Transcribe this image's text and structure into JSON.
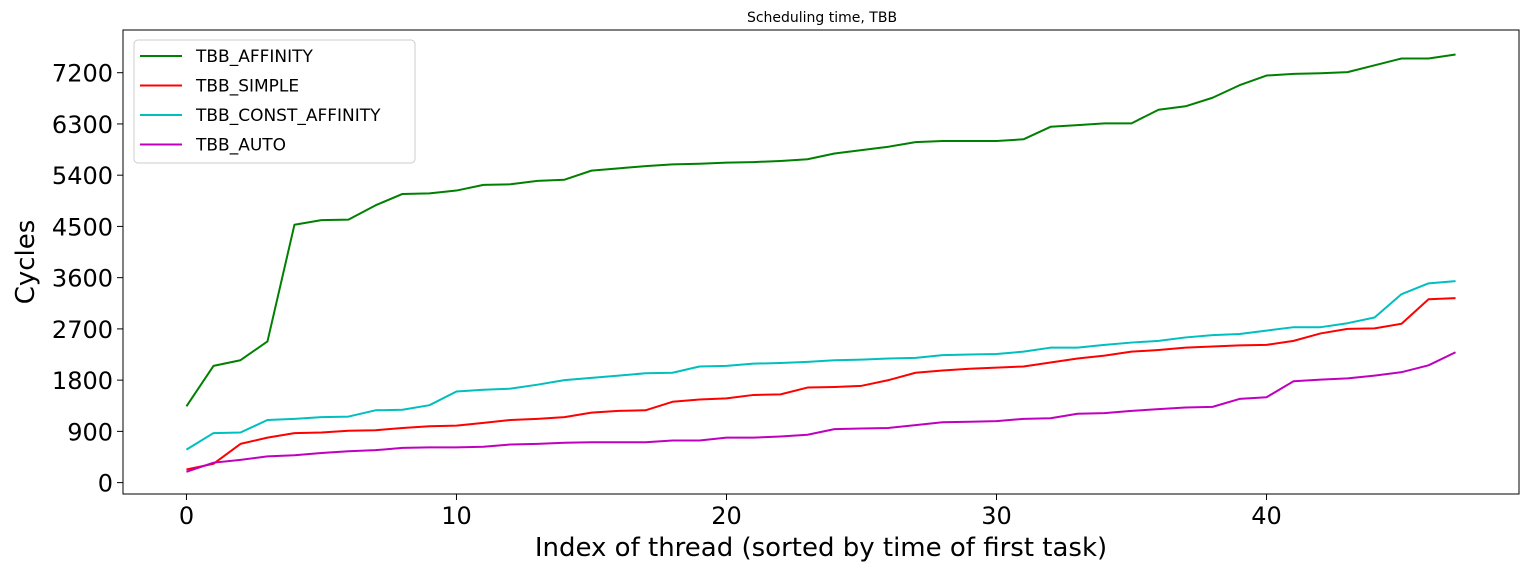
{
  "chart_data": {
    "type": "line",
    "title": "Scheduling time, TBB",
    "xlabel": "Index of thread (sorted by time of first task)",
    "ylabel": "Cycles",
    "xlim": [
      -2.35,
      49.35
    ],
    "ylim": [
      -200,
      7950
    ],
    "xticks": [
      0,
      10,
      20,
      30,
      40
    ],
    "yticks": [
      0,
      900,
      1800,
      2700,
      3600,
      4500,
      5400,
      6300,
      7200
    ],
    "grid": false,
    "legend_position": "top-left",
    "x": [
      0,
      1,
      2,
      3,
      4,
      5,
      6,
      7,
      8,
      9,
      10,
      11,
      12,
      13,
      14,
      15,
      16,
      17,
      18,
      19,
      20,
      21,
      22,
      23,
      24,
      25,
      26,
      27,
      28,
      29,
      30,
      31,
      32,
      33,
      34,
      35,
      36,
      37,
      38,
      39,
      40,
      41,
      42,
      43,
      44,
      45,
      46,
      47
    ],
    "series": [
      {
        "name": "TBB_AFFINITY",
        "color": "#008000",
        "values": [
          1340,
          2050,
          2150,
          2480,
          4530,
          4610,
          4620,
          4870,
          5070,
          5080,
          5130,
          5230,
          5240,
          5300,
          5320,
          5480,
          5520,
          5560,
          5590,
          5600,
          5620,
          5630,
          5650,
          5680,
          5780,
          5840,
          5900,
          5980,
          6000,
          6000,
          6000,
          6030,
          6250,
          6280,
          6310,
          6310,
          6550,
          6610,
          6760,
          6980,
          7150,
          7180,
          7190,
          7210,
          7330,
          7450,
          7450,
          7520
        ]
      },
      {
        "name": "TBB_SIMPLE",
        "color": "#ff0000",
        "values": [
          230,
          330,
          680,
          790,
          870,
          880,
          910,
          920,
          960,
          990,
          1000,
          1050,
          1100,
          1120,
          1150,
          1230,
          1260,
          1270,
          1420,
          1460,
          1480,
          1540,
          1550,
          1670,
          1680,
          1700,
          1800,
          1930,
          1970,
          2000,
          2020,
          2040,
          2110,
          2180,
          2230,
          2300,
          2330,
          2370,
          2390,
          2410,
          2420,
          2490,
          2620,
          2700,
          2710,
          2790,
          3220,
          3240
        ]
      },
      {
        "name": "TBB_CONST_AFFINITY",
        "color": "#00bfbf",
        "values": [
          580,
          870,
          880,
          1100,
          1120,
          1150,
          1160,
          1270,
          1280,
          1360,
          1600,
          1630,
          1650,
          1720,
          1800,
          1840,
          1880,
          1920,
          1930,
          2040,
          2050,
          2090,
          2100,
          2120,
          2150,
          2160,
          2180,
          2190,
          2240,
          2250,
          2260,
          2300,
          2370,
          2370,
          2420,
          2460,
          2490,
          2550,
          2590,
          2610,
          2670,
          2730,
          2730,
          2800,
          2900,
          3310,
          3500,
          3540
        ]
      },
      {
        "name": "TBB_AUTO",
        "color": "#bf00bf",
        "values": [
          190,
          350,
          400,
          460,
          480,
          520,
          550,
          570,
          610,
          620,
          620,
          630,
          670,
          680,
          700,
          710,
          710,
          710,
          740,
          740,
          790,
          790,
          810,
          840,
          940,
          950,
          960,
          1010,
          1060,
          1070,
          1080,
          1120,
          1130,
          1210,
          1220,
          1260,
          1290,
          1320,
          1330,
          1470,
          1500,
          1780,
          1810,
          1830,
          1880,
          1940,
          2060,
          2290
        ]
      }
    ]
  }
}
